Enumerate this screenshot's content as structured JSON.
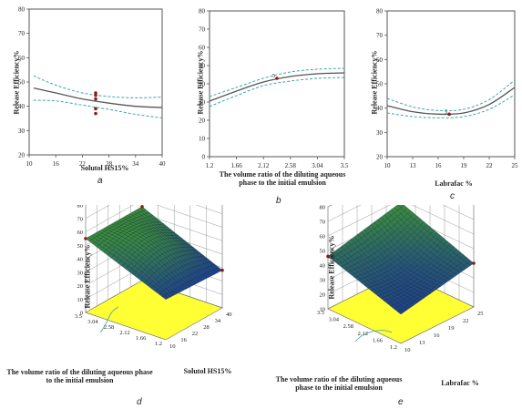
{
  "chart_data": [
    {
      "panel": "a",
      "type": "line",
      "xlabel": "Solutol HS15%",
      "ylabel": "Release Efficiency%",
      "x_ticks": [
        "10",
        "16",
        "22",
        "28",
        "34",
        "40"
      ],
      "y_ticks": [
        "20",
        "30",
        "40",
        "50",
        "60",
        "70",
        "80"
      ],
      "xlim": [
        10,
        40
      ],
      "ylim": [
        20,
        80
      ],
      "series": [
        {
          "role": "fit",
          "x": [
            11,
            16,
            22,
            28,
            34,
            40
          ],
          "y": [
            47.5,
            45.5,
            43.0,
            41.3,
            40.0,
            39.5
          ]
        },
        {
          "role": "upper",
          "x": [
            11,
            16,
            22,
            28,
            34,
            40
          ],
          "y": [
            52.5,
            48.7,
            45.5,
            44.0,
            43.5,
            43.8
          ]
        },
        {
          "role": "lower",
          "x": [
            11,
            16,
            22,
            28,
            34,
            40
          ],
          "y": [
            42.5,
            42.2,
            40.5,
            38.7,
            36.7,
            35.2
          ]
        }
      ],
      "points": [
        {
          "x": 25,
          "y": 45.5
        },
        {
          "x": 25,
          "y": 44.5
        },
        {
          "x": 25,
          "y": 43.0
        },
        {
          "x": 25,
          "y": 39.0
        },
        {
          "x": 25,
          "y": 37.0
        }
      ]
    },
    {
      "panel": "b",
      "type": "line",
      "xlabel": "The volume ratio of the diluting aqueous phase to the initial emulsion",
      "ylabel": "Release Efficiency%",
      "x_ticks": [
        "1.2",
        "1.66",
        "2.12",
        "2.58",
        "3.04",
        "3.5"
      ],
      "y_ticks": [
        "0",
        "10",
        "20",
        "30",
        "40",
        "50",
        "60",
        "70",
        "80"
      ],
      "xlim": [
        1.2,
        3.5
      ],
      "ylim": [
        0,
        80
      ],
      "series": [
        {
          "role": "fit",
          "x": [
            1.2,
            1.66,
            2.12,
            2.58,
            3.04,
            3.5
          ],
          "y": [
            30.5,
            36.0,
            41.0,
            44.0,
            45.5,
            46.0
          ]
        },
        {
          "role": "upper",
          "x": [
            1.2,
            1.66,
            2.12,
            2.58,
            3.04,
            3.5
          ],
          "y": [
            33.0,
            38.0,
            43.0,
            46.5,
            48.0,
            48.5
          ]
        },
        {
          "role": "lower",
          "x": [
            1.2,
            1.66,
            2.12,
            2.58,
            3.04,
            3.5
          ],
          "y": [
            27.5,
            33.5,
            39.0,
            41.5,
            43.0,
            43.5
          ]
        }
      ],
      "points": [
        {
          "x": 2.35,
          "y": 43.0,
          "label": "5"
        }
      ]
    },
    {
      "panel": "c",
      "type": "line",
      "xlabel": "Labrafac %",
      "ylabel": "Release Efficiency%",
      "x_ticks": [
        "10",
        "13",
        "16",
        "19",
        "22",
        "25"
      ],
      "y_ticks": [
        "20",
        "30",
        "40",
        "50",
        "60",
        "70",
        "80"
      ],
      "xlim": [
        10,
        25
      ],
      "ylim": [
        20,
        80
      ],
      "series": [
        {
          "role": "fit",
          "x": [
            10,
            13,
            16,
            19,
            22,
            25
          ],
          "y": [
            41.0,
            38.5,
            37.5,
            38.0,
            41.5,
            48.5
          ]
        },
        {
          "role": "upper",
          "x": [
            10,
            13,
            16,
            19,
            22,
            25
          ],
          "y": [
            44.0,
            40.5,
            39.0,
            39.5,
            43.5,
            51.5
          ]
        },
        {
          "role": "lower",
          "x": [
            10,
            13,
            16,
            19,
            22,
            25
          ],
          "y": [
            38.0,
            36.5,
            36.0,
            36.5,
            39.5,
            45.5
          ]
        }
      ],
      "points": [
        {
          "x": 17.3,
          "y": 37.5,
          "label": "5"
        }
      ]
    },
    {
      "panel": "d",
      "type": "surface",
      "xlabel": "Solutol HS15%",
      "ylabel": "The volume ratio of the diluting aqueous phase to the initial emulsion",
      "zlabel": "Release Efficiency%",
      "x_ticks": [
        "10",
        "16",
        "22",
        "28",
        "34",
        "40"
      ],
      "y_ticks": [
        "1.2",
        "1.66",
        "2.12",
        "2.58",
        "3.04",
        "3.5"
      ],
      "z_ticks": [
        "0",
        "10",
        "20",
        "30",
        "40",
        "50",
        "60",
        "70",
        "80"
      ],
      "corners_z": {
        "x10_y3.5": 55,
        "x40_y3.5": 55,
        "x10_y1.2": 30,
        "x40_y1.2": 28
      }
    },
    {
      "panel": "e",
      "type": "surface",
      "xlabel": "Labrafac %",
      "ylabel": "The volume ratio of the diluting aqueous phase to the initial emulsion",
      "zlabel": "Release Efficiency%",
      "x_ticks": [
        "10",
        "13",
        "16",
        "19",
        "22",
        "25"
      ],
      "y_ticks": [
        "1.2",
        "1.66",
        "2.12",
        "2.58",
        "3.04",
        "3.5"
      ],
      "z_ticks": [
        "10",
        "20",
        "30",
        "40",
        "50",
        "60",
        "70",
        "80"
      ],
      "corners_z": {
        "x10_y3.5": 46,
        "x25_y3.5": 58,
        "x10_y1.2": 30,
        "x25_y1.2": 40
      }
    }
  ],
  "labels": {
    "a": "a",
    "b": "b",
    "c": "c",
    "d": "d",
    "e": "e"
  },
  "colors": {
    "fit": "#555555",
    "ci": "#3aa6a6",
    "point": "#8b1a1a",
    "floor": "#ffff33",
    "surface_low": "#1d3f8f",
    "surface_high": "#3b8f3b"
  }
}
